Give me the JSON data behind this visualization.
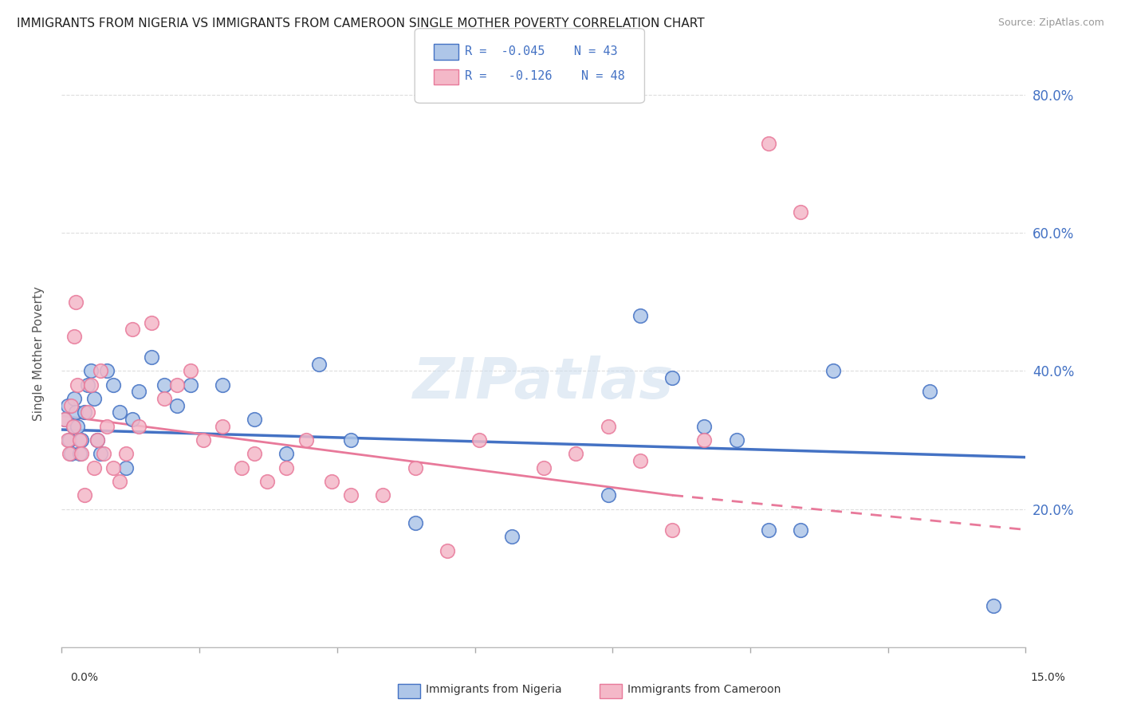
{
  "title": "IMMIGRANTS FROM NIGERIA VS IMMIGRANTS FROM CAMEROON SINGLE MOTHER POVERTY CORRELATION CHART",
  "source": "Source: ZipAtlas.com",
  "ylabel": "Single Mother Poverty",
  "xmin": 0.0,
  "xmax": 15.0,
  "ymin": 0.0,
  "ymax": 85.0,
  "yticks": [
    20.0,
    40.0,
    60.0,
    80.0
  ],
  "nigeria_R": -0.045,
  "nigeria_N": 43,
  "cameroon_R": -0.126,
  "cameroon_N": 48,
  "nigeria_color": "#aec6e8",
  "cameroon_color": "#f4b8c8",
  "nigeria_line_color": "#4472c4",
  "cameroon_line_color": "#e8799a",
  "title_color": "#222222",
  "right_axis_color": "#4472c4",
  "legend_text_color": "#4472c4",
  "watermark": "ZIPatlas",
  "nigeria_x": [
    0.05,
    0.1,
    0.12,
    0.15,
    0.18,
    0.2,
    0.22,
    0.25,
    0.28,
    0.3,
    0.35,
    0.4,
    0.45,
    0.5,
    0.55,
    0.6,
    0.7,
    0.8,
    0.9,
    1.0,
    1.1,
    1.2,
    1.4,
    1.6,
    1.8,
    2.0,
    2.5,
    3.0,
    3.5,
    4.0,
    4.5,
    5.5,
    7.0,
    8.5,
    9.0,
    9.5,
    10.0,
    10.5,
    11.0,
    11.5,
    12.0,
    13.5,
    14.5
  ],
  "nigeria_y": [
    33,
    35,
    30,
    28,
    32,
    36,
    34,
    32,
    28,
    30,
    34,
    38,
    40,
    36,
    30,
    28,
    40,
    38,
    34,
    26,
    33,
    37,
    42,
    38,
    35,
    38,
    38,
    33,
    28,
    41,
    30,
    18,
    16,
    22,
    48,
    39,
    32,
    30,
    17,
    17,
    40,
    37,
    6
  ],
  "cameroon_x": [
    0.05,
    0.1,
    0.12,
    0.15,
    0.18,
    0.2,
    0.22,
    0.25,
    0.28,
    0.3,
    0.35,
    0.4,
    0.45,
    0.5,
    0.55,
    0.6,
    0.65,
    0.7,
    0.8,
    0.9,
    1.0,
    1.1,
    1.2,
    1.4,
    1.6,
    1.8,
    2.0,
    2.2,
    2.5,
    2.8,
    3.0,
    3.2,
    3.5,
    3.8,
    4.2,
    4.5,
    5.0,
    5.5,
    6.0,
    6.5,
    7.5,
    8.0,
    8.5,
    9.0,
    9.5,
    10.0,
    11.0,
    11.5
  ],
  "cameroon_y": [
    33,
    30,
    28,
    35,
    32,
    45,
    50,
    38,
    30,
    28,
    22,
    34,
    38,
    26,
    30,
    40,
    28,
    32,
    26,
    24,
    28,
    46,
    32,
    47,
    36,
    38,
    40,
    30,
    32,
    26,
    28,
    24,
    26,
    30,
    24,
    22,
    22,
    26,
    14,
    30,
    26,
    28,
    32,
    27,
    17,
    30,
    73,
    63
  ],
  "nigeria_trend_x0": 0.0,
  "nigeria_trend_y0": 31.5,
  "nigeria_trend_x1": 15.0,
  "nigeria_trend_y1": 27.5,
  "cameroon_solid_x0": 0.0,
  "cameroon_solid_y0": 33.5,
  "cameroon_solid_x1": 9.5,
  "cameroon_solid_y1": 22.0,
  "cameroon_dash_x0": 9.5,
  "cameroon_dash_y0": 22.0,
  "cameroon_dash_x1": 15.0,
  "cameroon_dash_y1": 17.0
}
